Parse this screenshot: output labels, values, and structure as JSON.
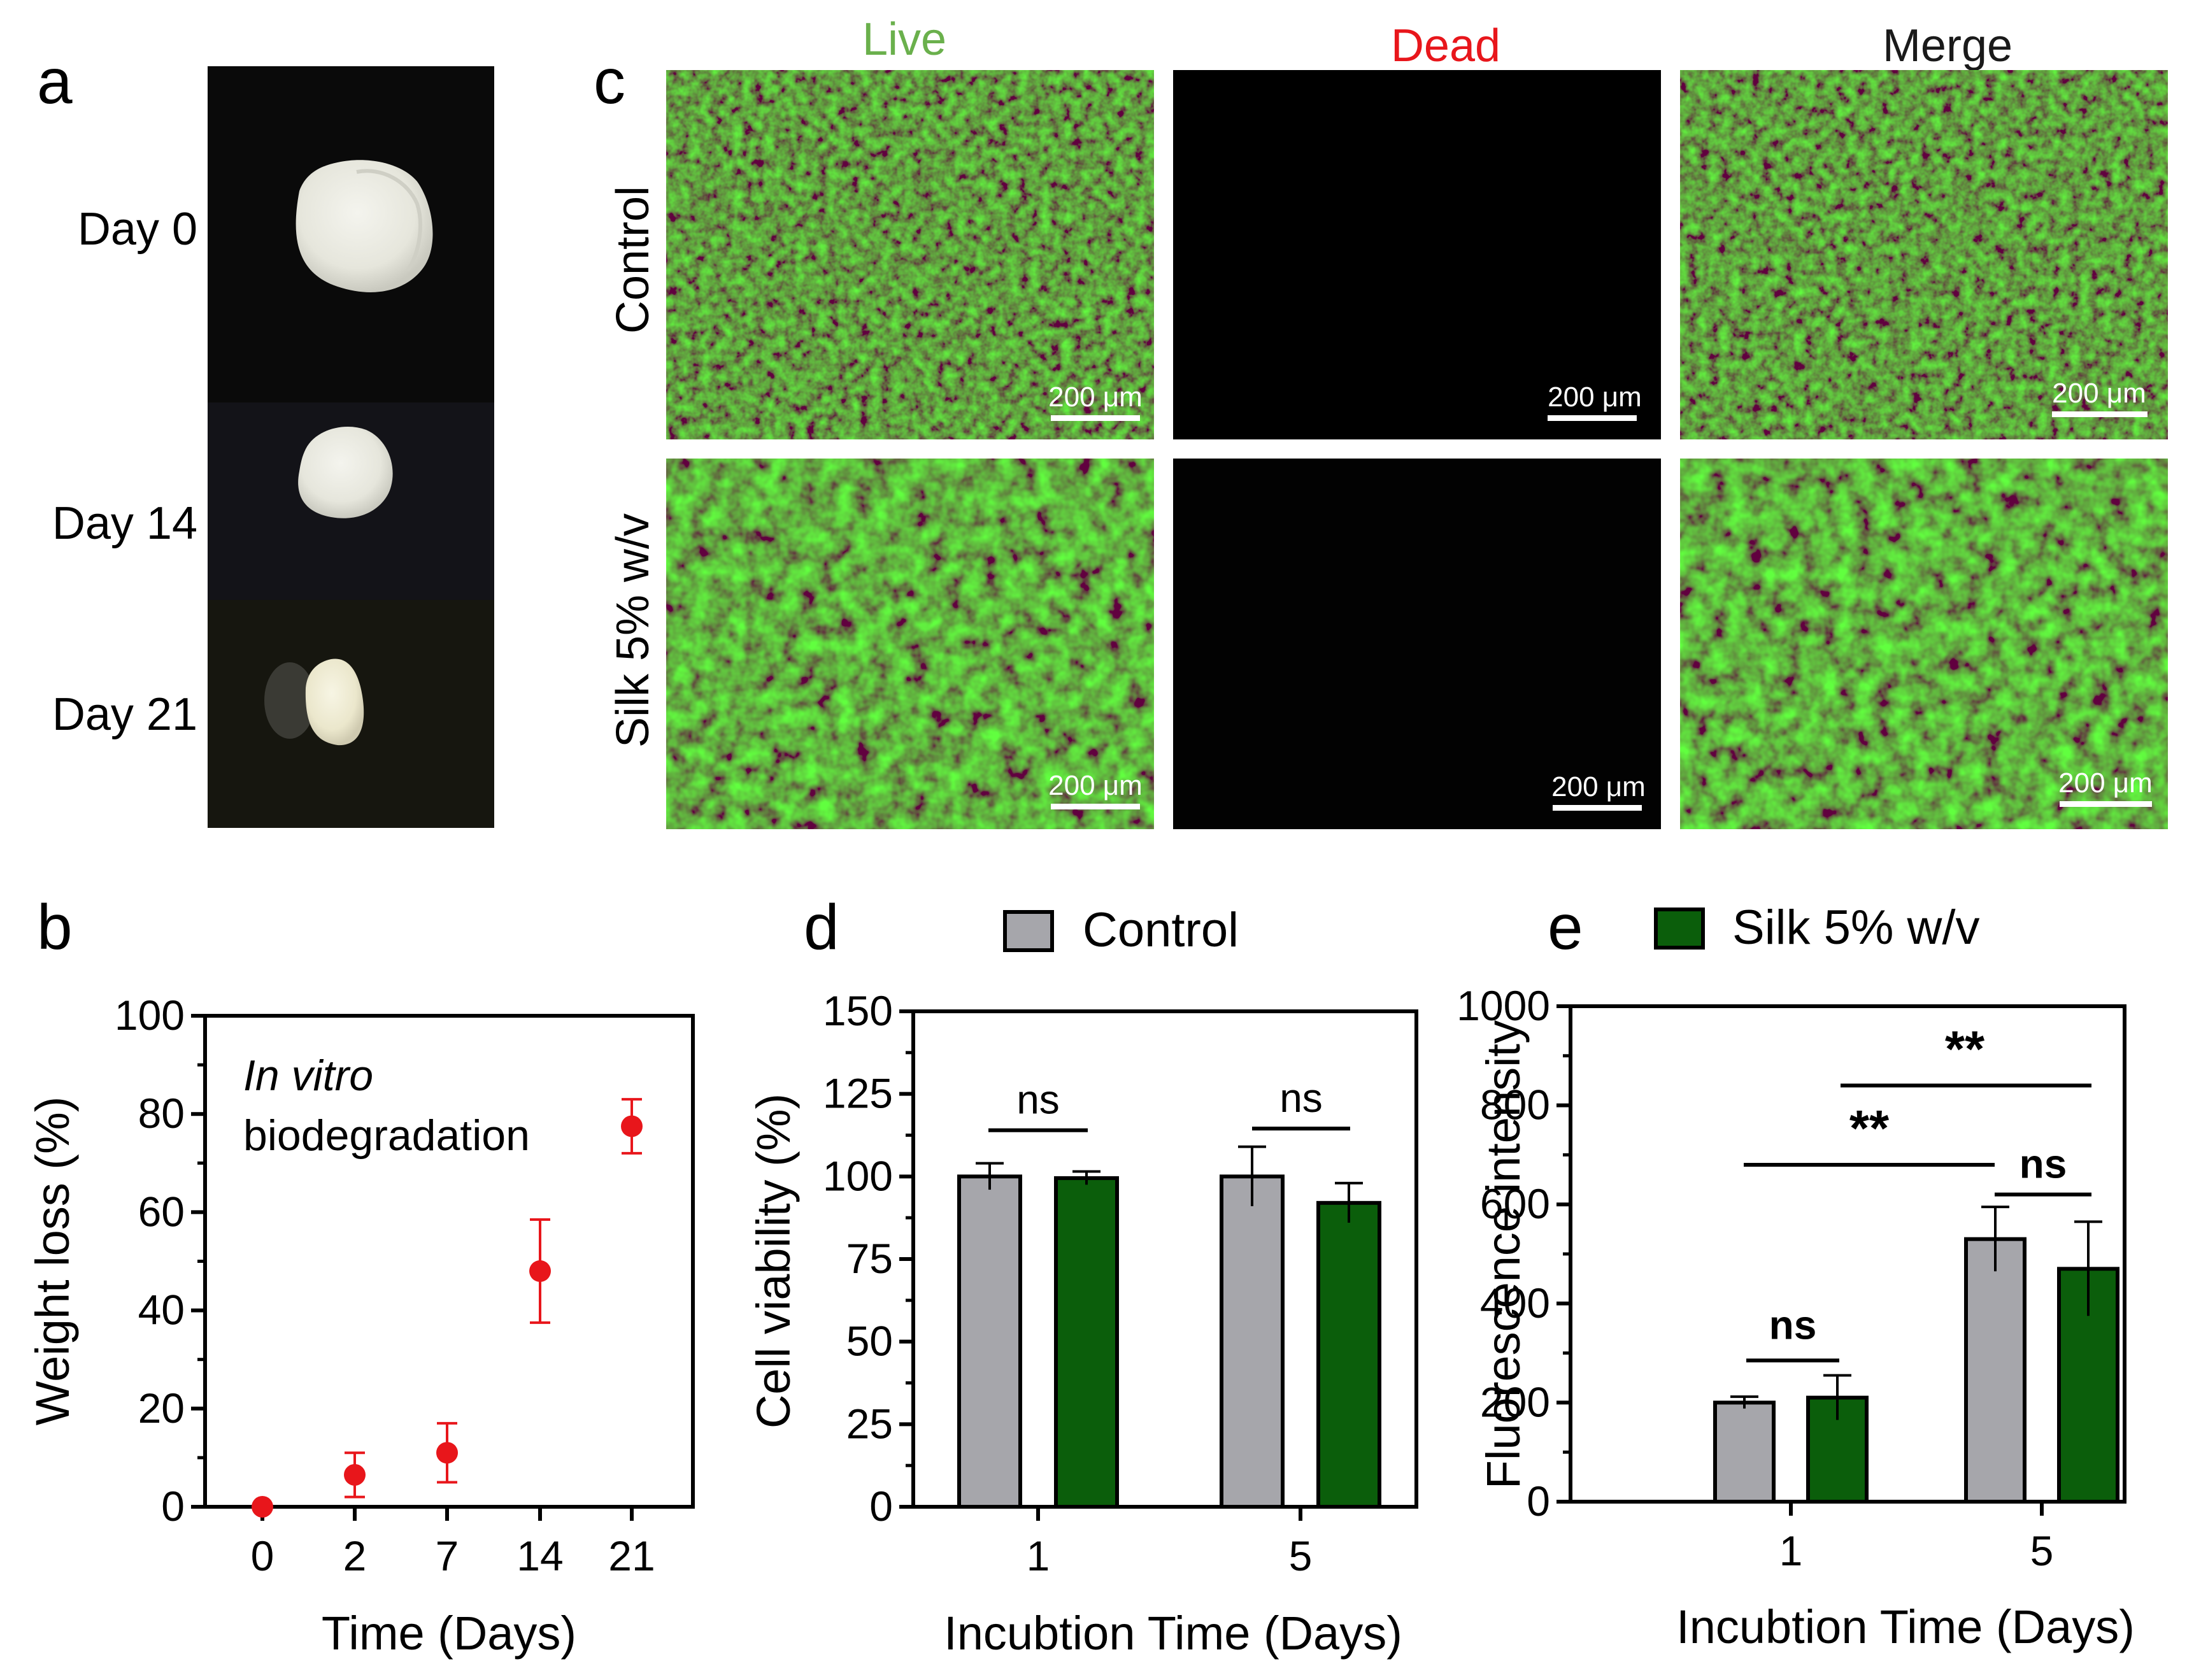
{
  "colors": {
    "control": "#a6a6ab",
    "silk": "#0b5e0b",
    "scatter": "#e8161b",
    "live_label": "#6ab04c",
    "dead_label": "#e8161b",
    "merge_label": "#1a1a1a"
  },
  "panel_letters": {
    "a": "a",
    "b": "b",
    "c": "c",
    "d": "d",
    "e": "e"
  },
  "panel_a": {
    "labels": [
      "Day 0",
      "Day 14",
      "Day 21"
    ]
  },
  "panel_c": {
    "columns": [
      "Live",
      "Dead",
      "Merge"
    ],
    "rows": [
      "Control",
      "Silk 5% w/v"
    ],
    "scale_bar": "200 μm"
  },
  "legend": {
    "items": [
      {
        "label": "Control",
        "color_key": "control"
      },
      {
        "label": "Silk 5% w/v",
        "color_key": "silk"
      }
    ]
  },
  "chart_data": [
    {
      "id": "b",
      "type": "scatter",
      "x": [
        "0",
        "2",
        "7",
        "14",
        "21"
      ],
      "y": [
        0,
        6.5,
        11,
        48,
        77.5
      ],
      "err": [
        0.5,
        4.5,
        6,
        10.5,
        5.5
      ],
      "ylim": [
        0,
        100
      ],
      "yticks": [
        0,
        20,
        40,
        60,
        80,
        100
      ],
      "xlabel": "Time (Days)",
      "ylabel": "Weight loss (%)",
      "annotation": [
        "In vitro",
        "biodegradation"
      ]
    },
    {
      "id": "d",
      "type": "bar",
      "categories": [
        "1",
        "5"
      ],
      "series": [
        {
          "name": "Control",
          "values": [
            100,
            100
          ],
          "err": [
            4,
            9
          ]
        },
        {
          "name": "Silk 5% w/v",
          "values": [
            99.5,
            92
          ],
          "err": [
            2,
            6
          ]
        }
      ],
      "ylim": [
        0,
        150
      ],
      "yticks": [
        0,
        25,
        50,
        75,
        100,
        125,
        150
      ],
      "xlabel": "Incubtion Time (Days)",
      "ylabel": "Cell viability (%)",
      "significance": [
        "ns",
        "ns"
      ]
    },
    {
      "id": "e",
      "type": "bar",
      "categories": [
        "1",
        "5"
      ],
      "series": [
        {
          "name": "Control",
          "values": [
            200,
            530
          ],
          "err": [
            12,
            65
          ]
        },
        {
          "name": "Silk 5% w/v",
          "values": [
            210,
            470
          ],
          "err": [
            45,
            95
          ]
        }
      ],
      "ylim": [
        0,
        1000
      ],
      "yticks": [
        0,
        200,
        400,
        600,
        800,
        1000
      ],
      "xlabel": "Incubtion Time (Days)",
      "ylabel": "Fluorescence intensity",
      "significance": [
        "ns",
        "ns",
        "**",
        "**"
      ]
    }
  ]
}
